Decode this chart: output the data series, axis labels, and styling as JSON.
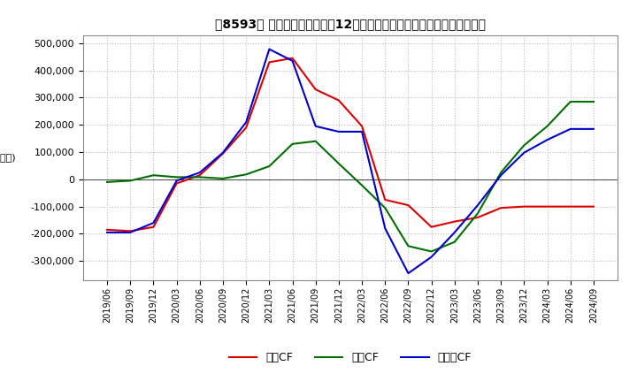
{
  "title": "【8593】 キャッシュフローの12か月移動合計の対前年同期増減額の推移",
  "ylabel": "(百万円)",
  "ylim": [
    -370000,
    530000
  ],
  "yticks": [
    -300000,
    -200000,
    -100000,
    0,
    100000,
    200000,
    300000,
    400000,
    500000
  ],
  "dates": [
    "2019/06",
    "2019/09",
    "2019/12",
    "2020/03",
    "2020/06",
    "2020/09",
    "2020/12",
    "2021/03",
    "2021/06",
    "2021/09",
    "2021/12",
    "2022/03",
    "2022/06",
    "2022/09",
    "2022/12",
    "2023/03",
    "2023/06",
    "2023/09",
    "2023/12",
    "2024/03",
    "2024/06",
    "2024/09"
  ],
  "operating_cf": [
    -185000,
    -190000,
    -175000,
    -15000,
    15000,
    95000,
    190000,
    430000,
    445000,
    330000,
    290000,
    195000,
    -75000,
    -95000,
    -175000,
    -155000,
    -140000,
    -105000,
    -100000,
    -100000,
    -100000,
    -100000
  ],
  "investing_cf": [
    -10000,
    -5000,
    15000,
    8000,
    8000,
    3000,
    18000,
    48000,
    130000,
    140000,
    58000,
    -22000,
    -105000,
    -245000,
    -265000,
    -230000,
    -125000,
    25000,
    125000,
    195000,
    285000,
    285000
  ],
  "free_cf": [
    -195000,
    -195000,
    -160000,
    -5000,
    25000,
    98000,
    210000,
    478000,
    435000,
    195000,
    175000,
    175000,
    -180000,
    -345000,
    -285000,
    -195000,
    -95000,
    15000,
    98000,
    145000,
    185000,
    185000
  ],
  "operating_color": "#dd0000",
  "investing_color": "#007000",
  "free_color": "#0000cc",
  "background_color": "#ffffff",
  "grid_color": "#bbbbbb",
  "line_width": 1.5
}
